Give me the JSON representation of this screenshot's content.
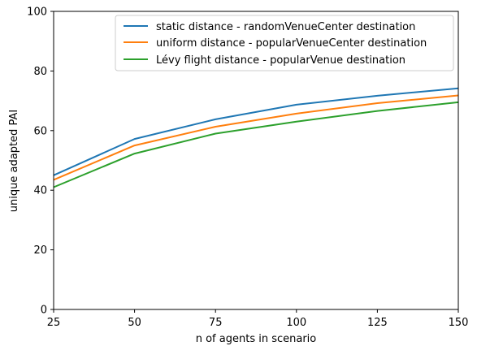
{
  "chart_data": {
    "type": "line",
    "xlabel": "n of agents in scenario",
    "ylabel": "unique adapted PAI",
    "x": [
      25,
      50,
      75,
      100,
      125,
      150
    ],
    "xlim": [
      25,
      150
    ],
    "ylim": [
      0,
      100
    ],
    "xticks": [
      "25",
      "50",
      "75",
      "100",
      "125",
      "150"
    ],
    "yticks": [
      "0",
      "20",
      "40",
      "60",
      "80",
      "100"
    ],
    "grid": false,
    "legend_position": "top-right",
    "series": [
      {
        "name": "static distance - randomVenueCenter destination",
        "color": "#1f77b4",
        "values": [
          45.0,
          57.2,
          63.8,
          68.7,
          71.7,
          74.2
        ]
      },
      {
        "name": "uniform distance - popularVenueCenter destination",
        "color": "#ff7f0e",
        "values": [
          43.5,
          55.0,
          61.3,
          65.7,
          69.2,
          71.8
        ]
      },
      {
        "name": "Lévy flight distance - popularVenue destination",
        "color": "#2ca02c",
        "values": [
          41.0,
          52.3,
          59.0,
          63.0,
          66.6,
          69.5
        ]
      }
    ]
  }
}
